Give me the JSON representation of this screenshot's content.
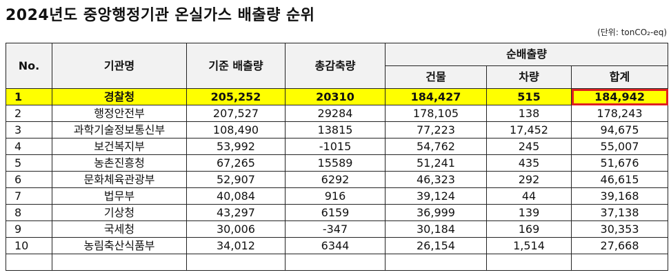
{
  "title": "2024년도 중앙행정기관 온실가스 배출량 순위",
  "unit": "(단위: tonCO₂-eq)",
  "table": {
    "headers": {
      "no": "No.",
      "name": "기관명",
      "base": "기준 배출량",
      "reduction": "총감축량",
      "net": "순배출량",
      "building": "건물",
      "vehicle": "차량",
      "total": "합계"
    },
    "rows": [
      [
        "1",
        "경찰청",
        "205,252",
        "20310",
        "184,427",
        "515",
        "184,942"
      ],
      [
        "2",
        "행정안전부",
        "207,527",
        "29284",
        "178,105",
        "138",
        "178,243"
      ],
      [
        "3",
        "과학기술정보통신부",
        "108,490",
        "13815",
        "77,223",
        "17,452",
        "94,675"
      ],
      [
        "4",
        "보건복지부",
        "53,992",
        "-1015",
        "54,762",
        "245",
        "55,007"
      ],
      [
        "5",
        "농촌진흥청",
        "67,265",
        "15589",
        "51,241",
        "435",
        "51,676"
      ],
      [
        "6",
        "문화체육관광부",
        "52,907",
        "6292",
        "46,323",
        "292",
        "46,615"
      ],
      [
        "7",
        "법무부",
        "40,084",
        "916",
        "39,124",
        "44",
        "39,168"
      ],
      [
        "8",
        "기상청",
        "43,297",
        "6159",
        "36,999",
        "139",
        "37,138"
      ],
      [
        "9",
        "국세청",
        "30,006",
        "-347",
        "30,184",
        "169",
        "30,353"
      ],
      [
        "10",
        "농림축산식품부",
        "34,012",
        "6344",
        "26,154",
        "1,514",
        "27,668"
      ]
    ]
  }
}
